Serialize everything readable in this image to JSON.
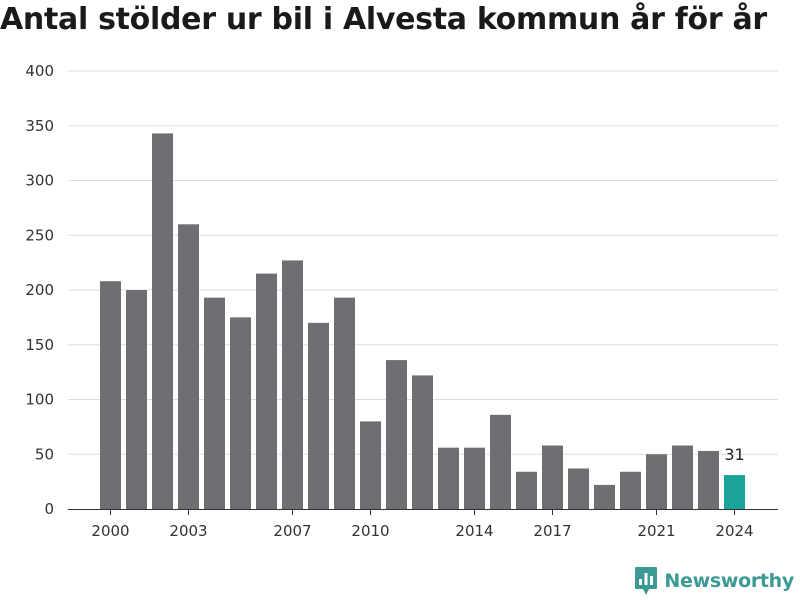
{
  "chart_data": {
    "type": "bar",
    "title": "Antal stölder ur bil i Alvesta kommun år för år",
    "categories": [
      2000,
      2001,
      2002,
      2003,
      2004,
      2005,
      2006,
      2007,
      2008,
      2009,
      2010,
      2011,
      2012,
      2013,
      2014,
      2015,
      2016,
      2017,
      2018,
      2019,
      2020,
      2021,
      2022,
      2023,
      2024
    ],
    "values": [
      208,
      200,
      343,
      260,
      193,
      175,
      215,
      227,
      170,
      193,
      80,
      136,
      122,
      56,
      56,
      86,
      34,
      58,
      37,
      22,
      34,
      50,
      58,
      53,
      31
    ],
    "x_tick_labels": [
      "2000",
      "2003",
      "2007",
      "2010",
      "2014",
      "2017",
      "2021",
      "2024"
    ],
    "y_ticks": [
      0,
      50,
      100,
      150,
      200,
      250,
      300,
      350,
      400
    ],
    "ylim": [
      0,
      400
    ],
    "xlabel": "",
    "ylabel": "",
    "grid": true,
    "bar_color": "#6f6e73",
    "highlight_color": "#1aa39a",
    "highlight_category": 2024,
    "value_labels": [
      {
        "category": 2024,
        "text": "31"
      }
    ]
  },
  "branding": {
    "name": "Newsworthy",
    "logo_icon": "bar-chart-badge-icon",
    "color": "#3b9b94"
  }
}
